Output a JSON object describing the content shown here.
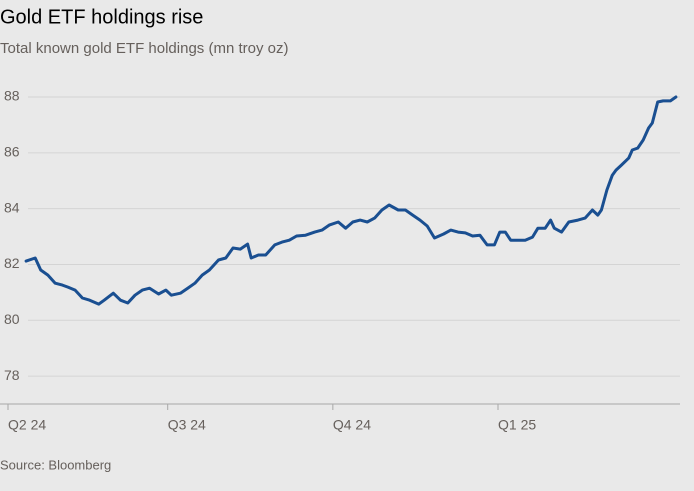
{
  "chart_data": {
    "type": "line",
    "title": "Gold ETF holdings rise",
    "subtitle": "Total known gold ETF holdings (mn troy oz)",
    "source": "Source: Bloomberg",
    "xlim": [
      0,
      378
    ],
    "xticks": [
      {
        "value": 0,
        "label": "Q2 24"
      },
      {
        "value": 88,
        "label": "Q3 24"
      },
      {
        "value": 179,
        "label": "Q4 24"
      },
      {
        "value": 270,
        "label": "Q1 25"
      }
    ],
    "ylim": [
      77,
      88.8
    ],
    "yticks": [
      78,
      80,
      82,
      84,
      86,
      88
    ],
    "grid": true,
    "x": [
      10,
      15,
      18,
      22,
      26,
      30,
      33,
      37,
      41,
      45,
      50,
      53,
      58,
      62,
      66,
      70,
      74,
      78,
      83,
      87,
      90,
      95,
      99,
      103,
      107,
      111,
      116,
      120,
      124,
      128,
      132,
      134,
      138,
      142,
      147,
      151,
      155,
      159,
      164,
      169,
      173,
      177,
      182,
      186,
      190,
      194,
      198,
      202,
      206,
      210,
      215,
      219,
      223,
      227,
      231,
      235,
      240,
      244,
      248,
      252,
      256,
      260,
      264,
      268,
      271,
      274,
      277,
      281,
      285,
      289,
      292,
      296,
      299,
      301,
      305,
      309,
      314,
      318,
      322,
      325,
      327,
      330,
      333,
      335,
      338,
      342,
      344,
      347,
      350,
      353,
      355,
      358,
      361,
      365,
      368
    ],
    "series": [
      {
        "name": "Gold ETF holdings",
        "color": "#1a4f91",
        "values": [
          82.12,
          82.23,
          81.8,
          81.62,
          81.33,
          81.26,
          81.19,
          81.08,
          80.8,
          80.72,
          80.58,
          80.72,
          80.97,
          80.72,
          80.62,
          80.9,
          81.08,
          81.15,
          80.94,
          81.08,
          80.9,
          80.97,
          81.15,
          81.33,
          81.62,
          81.8,
          82.16,
          82.23,
          82.59,
          82.55,
          82.73,
          82.23,
          82.34,
          82.34,
          82.7,
          82.8,
          82.87,
          83.02,
          83.05,
          83.16,
          83.23,
          83.41,
          83.52,
          83.3,
          83.52,
          83.59,
          83.52,
          83.66,
          83.95,
          84.13,
          83.95,
          83.95,
          83.77,
          83.59,
          83.38,
          82.95,
          83.09,
          83.23,
          83.16,
          83.13,
          83.02,
          83.05,
          82.7,
          82.7,
          83.16,
          83.16,
          82.87,
          82.87,
          82.87,
          82.98,
          83.3,
          83.3,
          83.59,
          83.3,
          83.16,
          83.52,
          83.59,
          83.66,
          83.95,
          83.77,
          83.95,
          84.67,
          85.2,
          85.38,
          85.56,
          85.81,
          86.1,
          86.17,
          86.46,
          86.89,
          87.07,
          87.82,
          87.86,
          87.86,
          88.0
        ]
      }
    ]
  }
}
